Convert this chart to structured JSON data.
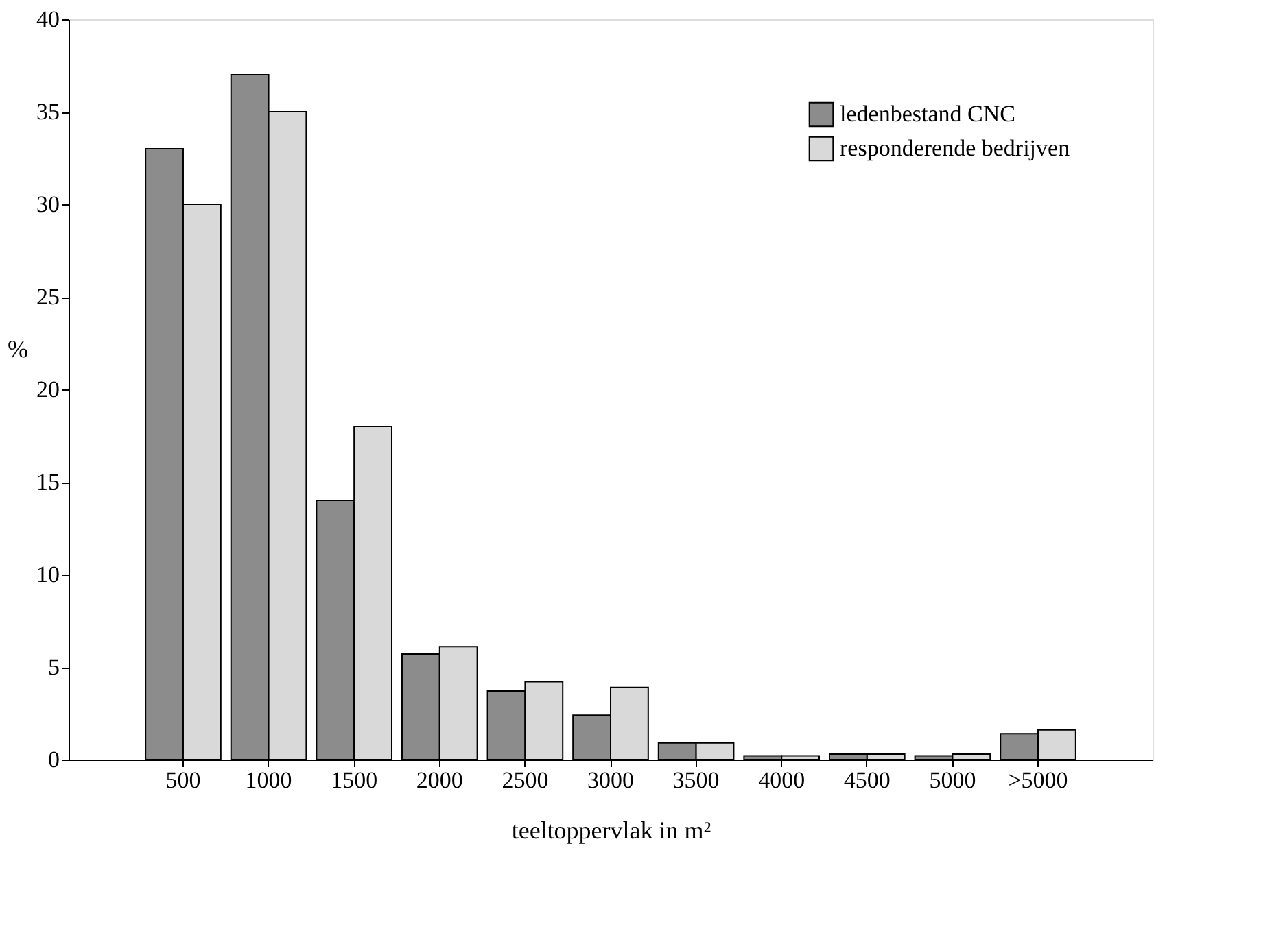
{
  "chart_data": {
    "type": "bar",
    "xlabel": "teeltoppervlak in m²",
    "ylabel": "%",
    "categories": [
      "500",
      "1000",
      "1500",
      "2000",
      "2500",
      "3000",
      "3500",
      "4000",
      "4500",
      "5000",
      ">5000"
    ],
    "series": [
      {
        "name": "ledenbestand CNC",
        "color": "#8c8c8c",
        "values": [
          33,
          37,
          14,
          5.7,
          3.7,
          2.4,
          0.9,
          0.2,
          0.3,
          0.2,
          1.4
        ]
      },
      {
        "name": "responderende bedrijven",
        "color": "#d9d9d9",
        "values": [
          30,
          35,
          18,
          6.1,
          4.2,
          3.9,
          0.9,
          0.2,
          0.3,
          0.3,
          1.6
        ]
      }
    ],
    "ylim": [
      0,
      40
    ],
    "yticks": [
      0,
      5,
      10,
      15,
      20,
      25,
      30,
      35,
      40
    ],
    "grid": false,
    "legend": "top right"
  }
}
